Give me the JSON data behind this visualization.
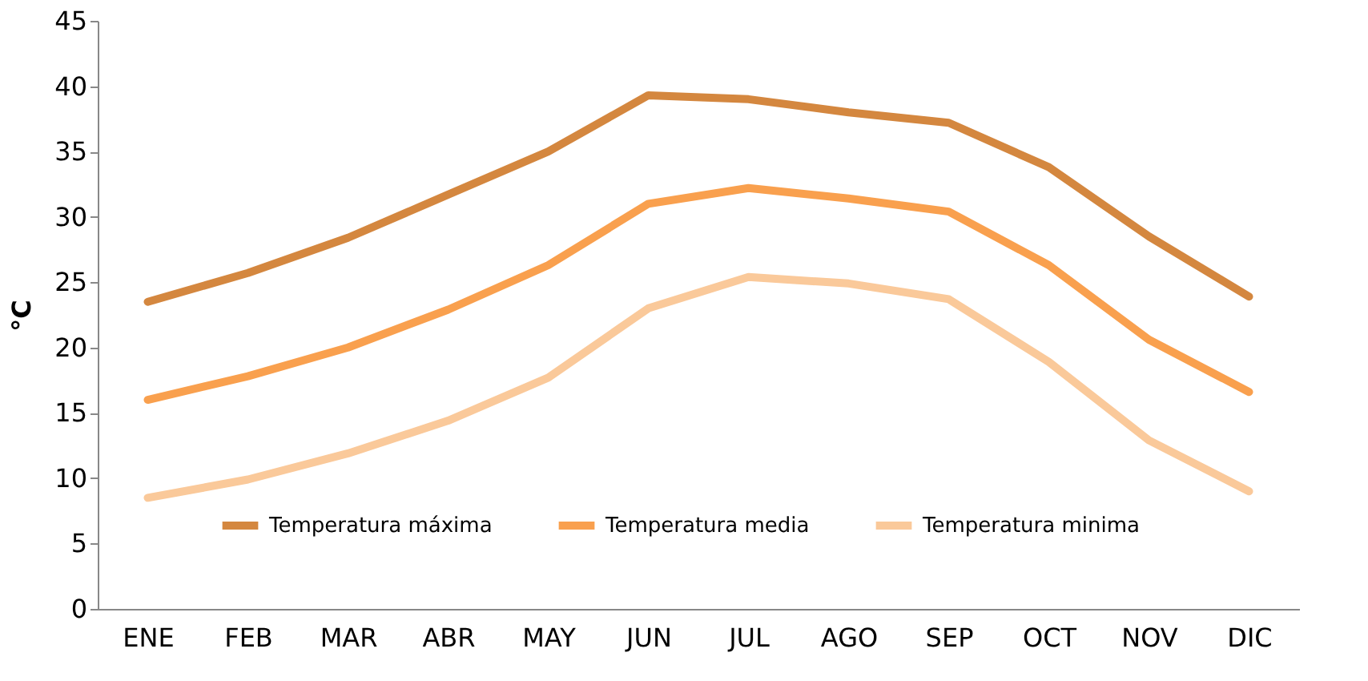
{
  "chart_data": {
    "type": "line",
    "ylabel": "°C",
    "categories": [
      "ENE",
      "FEB",
      "MAR",
      "ABR",
      "MAY",
      "JUN",
      "JUL",
      "AGO",
      "SEP",
      "OCT",
      "NOV",
      "DIC"
    ],
    "series": [
      {
        "name": "Temperatura máxima",
        "color": "#d4873f",
        "values": [
          23.5,
          25.7,
          28.4,
          31.7,
          35.0,
          39.3,
          39.0,
          38.0,
          37.2,
          33.8,
          28.5,
          23.9
        ]
      },
      {
        "name": "Temperatura media",
        "color": "#f9a04e",
        "values": [
          16.0,
          17.8,
          20.0,
          22.9,
          26.3,
          31.0,
          32.2,
          31.4,
          30.4,
          26.3,
          20.6,
          16.6
        ]
      },
      {
        "name": "Temperatura minima",
        "color": "#fac99a",
        "values": [
          8.5,
          9.9,
          11.9,
          14.4,
          17.7,
          23.0,
          25.4,
          24.9,
          23.7,
          18.9,
          12.9,
          9.0
        ]
      }
    ],
    "ylim": [
      0,
      45
    ],
    "yticks": [
      0,
      5,
      10,
      15,
      20,
      25,
      30,
      35,
      40,
      45
    ],
    "grid": false,
    "legend": "bottom",
    "marker": "none",
    "line_style": "solid"
  }
}
